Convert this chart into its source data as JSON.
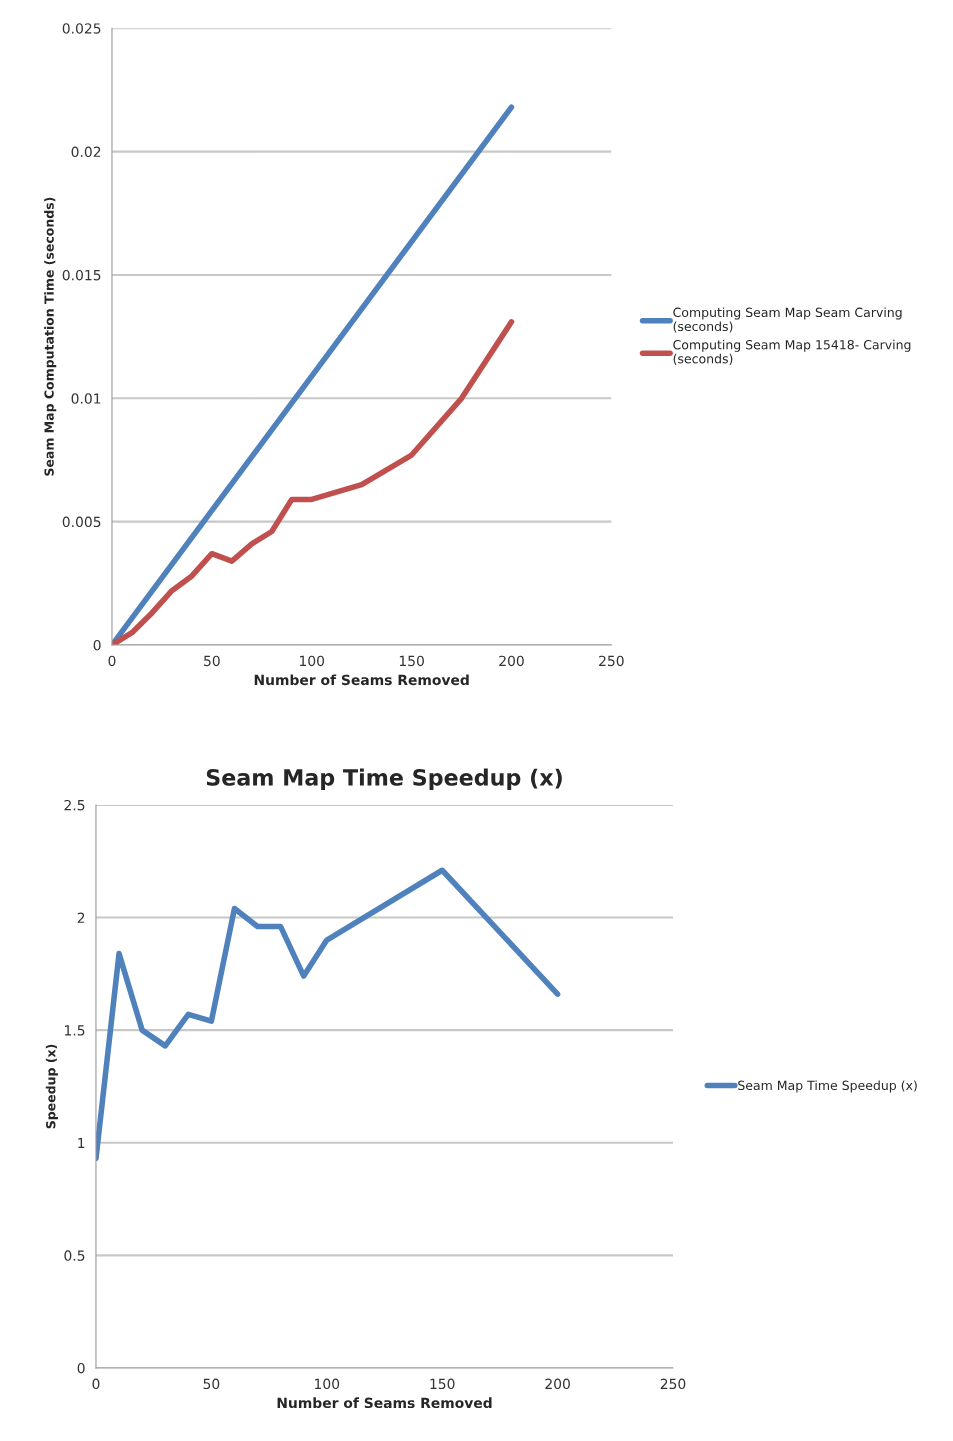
{
  "chart_data": [
    {
      "type": "line",
      "xlabel": "Number of Seams Removed",
      "ylabel": "Seam Map Computation Time (seconds)",
      "xlim": [
        0,
        250
      ],
      "xticks": [
        0,
        50,
        100,
        150,
        200,
        250
      ],
      "ylim": [
        0,
        0.025
      ],
      "yticks": [
        0,
        0.005,
        0.01,
        0.015,
        0.02,
        0.025
      ],
      "grid": "y",
      "legend": "right",
      "series": [
        {
          "name": "Computing Seam Map Seam Carving (seconds)",
          "color": "#4f81bd",
          "x": [
            0,
            200
          ],
          "values": [
            0,
            0.0218
          ]
        },
        {
          "name": "Computing Seam Map 15418- Carving (seconds)",
          "color": "#c0504d",
          "x": [
            0,
            10,
            20,
            30,
            40,
            50,
            60,
            70,
            80,
            90,
            100,
            125,
            150,
            175,
            200
          ],
          "values": [
            0,
            0.0005,
            0.0013,
            0.0022,
            0.0028,
            0.0037,
            0.0034,
            0.0041,
            0.0046,
            0.0059,
            0.0059,
            0.0065,
            0.0077,
            0.01,
            0.0131
          ]
        }
      ]
    },
    {
      "type": "line",
      "title": "Seam Map Time Speedup (x)",
      "xlabel": "Number of Seams Removed",
      "ylabel": "Speedup (x)",
      "xlim": [
        0,
        250
      ],
      "xticks": [
        0,
        50,
        100,
        150,
        200,
        250
      ],
      "ylim": [
        0,
        2.5
      ],
      "yticks": [
        0,
        0.5,
        1,
        1.5,
        2,
        2.5
      ],
      "grid": "y",
      "legend": "right",
      "series": [
        {
          "name": "Seam Map Time Speedup (x)",
          "color": "#4f81bd",
          "x": [
            0,
            10,
            20,
            30,
            40,
            50,
            60,
            70,
            80,
            90,
            100,
            150,
            200
          ],
          "values": [
            0.93,
            1.84,
            1.5,
            1.43,
            1.57,
            1.54,
            2.04,
            1.96,
            1.96,
            1.74,
            1.9,
            2.21,
            1.66
          ]
        }
      ]
    }
  ]
}
